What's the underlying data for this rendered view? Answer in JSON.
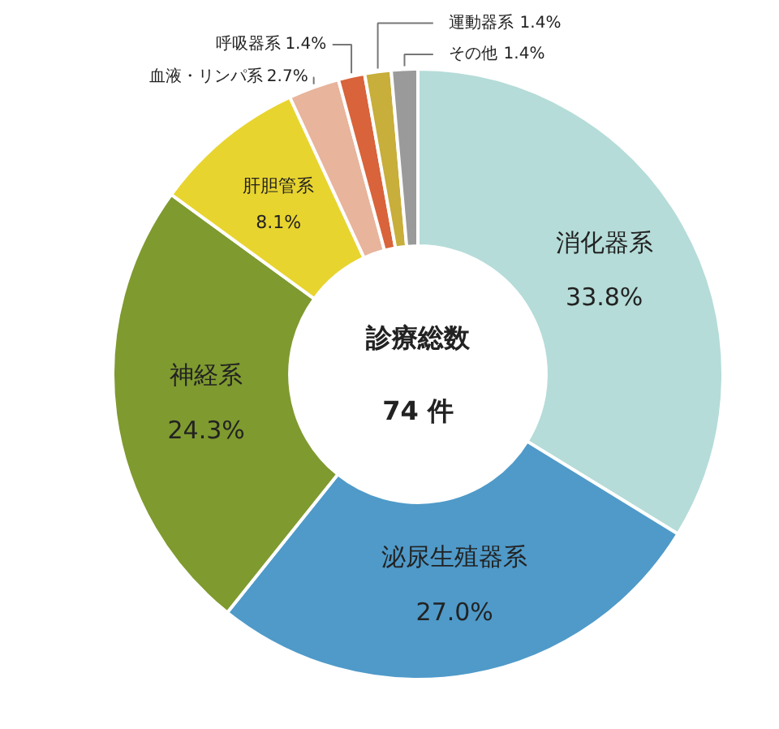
{
  "chart_data": {
    "type": "donut",
    "categories": [
      "消化器系",
      "泌尿生殖器系",
      "神経系",
      "肝胆管系",
      "血液・リンパ系",
      "呼吸器系",
      "運動器系",
      "その他"
    ],
    "values": [
      33.8,
      27.0,
      24.3,
      8.1,
      2.7,
      1.4,
      1.4,
      1.4
    ],
    "colors": [
      "#b5dcd8",
      "#4f9ac9",
      "#7f9a2f",
      "#e8d42f",
      "#e8b49c",
      "#d9633a",
      "#c8ae3a",
      "#9a9a9a"
    ],
    "value_labels": [
      "33.8%",
      "27.0%",
      "24.3%",
      "8.1%",
      "2.7%",
      "1.4%",
      "1.4%",
      "1.4%"
    ],
    "annotations": [
      "診療総数",
      "74 件"
    ]
  }
}
